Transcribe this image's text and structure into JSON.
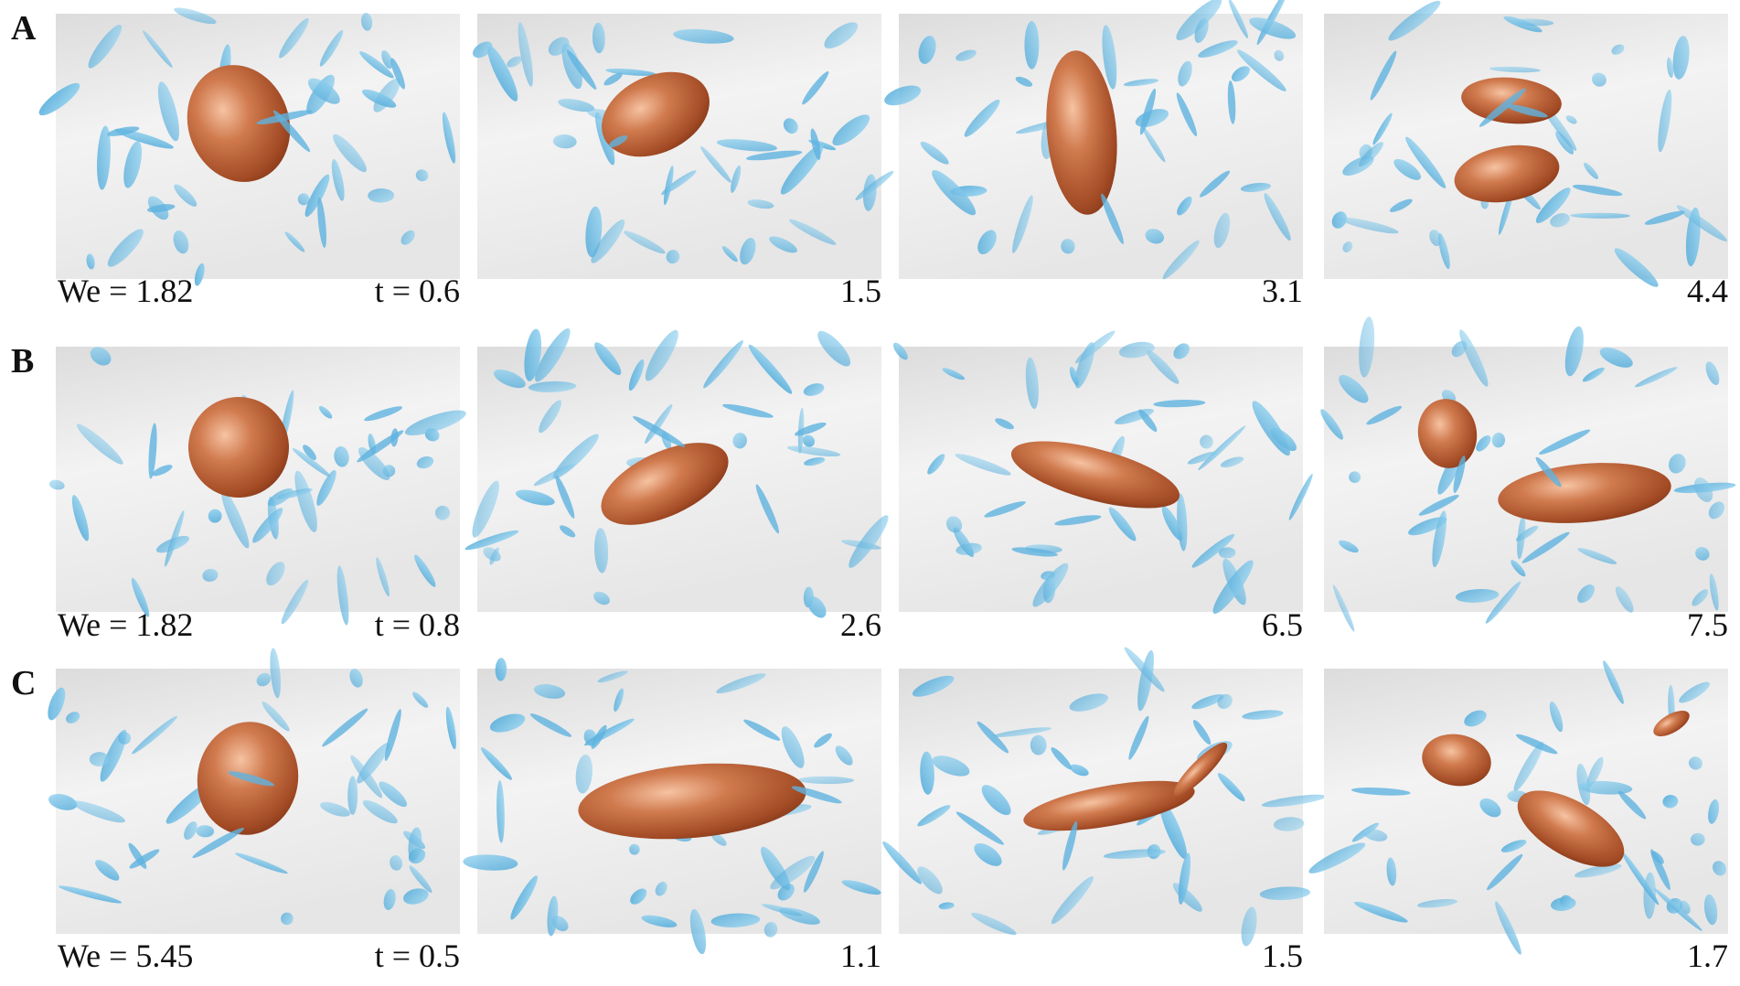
{
  "rows": [
    {
      "label": "A",
      "we_label": "We = 1.82",
      "times": [
        "t = 0.6",
        "1.5",
        "3.1",
        "4.4"
      ]
    },
    {
      "label": "B",
      "we_label": "We = 1.82",
      "times": [
        "t = 0.8",
        "2.6",
        "6.5",
        "7.5"
      ]
    },
    {
      "label": "C",
      "we_label": "We = 5.45",
      "times": [
        "t = 0.5",
        "1.1",
        "1.5",
        "1.7"
      ]
    }
  ]
}
